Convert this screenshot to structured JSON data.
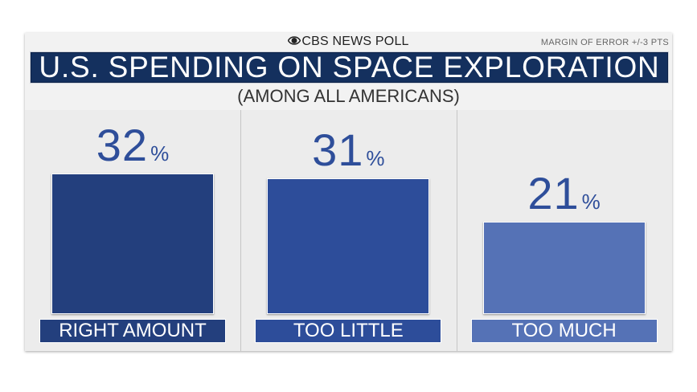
{
  "header": {
    "brand": "CBS NEWS POLL",
    "margin_of_error": "MARGIN OF ERROR +/-3 PTS",
    "title": "U.S. SPENDING ON SPACE EXPLORATION",
    "subtitle": "(AMONG ALL AMERICANS)"
  },
  "chart_data": {
    "type": "bar",
    "title": "U.S. SPENDING ON SPACE EXPLORATION",
    "subtitle": "(AMONG ALL AMERICANS)",
    "categories": [
      "RIGHT AMOUNT",
      "TOO LITTLE",
      "TOO MUCH"
    ],
    "values": [
      32,
      31,
      21
    ],
    "value_suffix": "%",
    "ylim": [
      0,
      40
    ],
    "grid": false,
    "colors": [
      "#233f7d",
      "#2d4d9a",
      "#5572b6"
    ],
    "xlabel": "",
    "ylabel": ""
  }
}
